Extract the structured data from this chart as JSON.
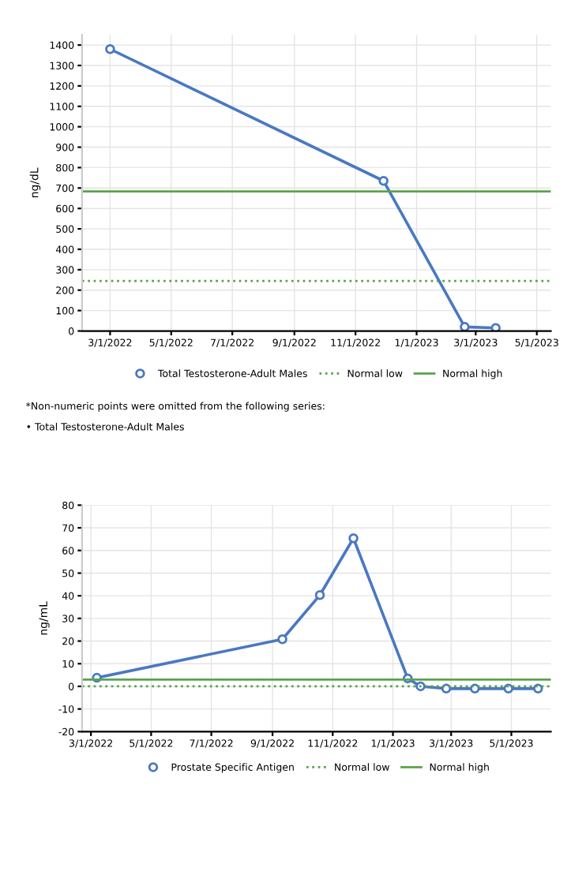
{
  "chart_data": [
    {
      "type": "line",
      "ylabel": "ng/dL",
      "marker": "circle",
      "line_style": "solid",
      "grid": true,
      "legend": "bottom",
      "series": [
        {
          "name": "Total Testosterone-Adult Males",
          "color": "#4a78c2",
          "x": [
            "2022-03-01",
            "2022-11-29",
            "2023-02-18",
            "2023-03-21"
          ],
          "values": [
            1380,
            735,
            20,
            15
          ]
        }
      ],
      "ref_lines": [
        {
          "axis": "y",
          "value": 245,
          "label": "Normal low",
          "color": "#5aa34a",
          "line_style": "dotted"
        },
        {
          "axis": "y",
          "value": 683,
          "label": "Normal high",
          "color": "#5aa34a",
          "line_style": "solid"
        }
      ],
      "xlim": [
        "2022-02-01",
        "2023-05-15"
      ],
      "ylim": [
        0,
        1450
      ],
      "xticks": [
        {
          "value": "2022-03-01",
          "label": "3/1/2022"
        },
        {
          "value": "2022-05-01",
          "label": "5/1/2022"
        },
        {
          "value": "2022-07-01",
          "label": "7/1/2022"
        },
        {
          "value": "2022-09-01",
          "label": "9/1/2022"
        },
        {
          "value": "2022-11-01",
          "label": "11/1/2022"
        },
        {
          "value": "2023-01-01",
          "label": "1/1/2023"
        },
        {
          "value": "2023-03-01",
          "label": "3/1/2023"
        },
        {
          "value": "2023-05-01",
          "label": "5/1/2023"
        }
      ],
      "yticks": [
        0,
        100,
        200,
        300,
        400,
        500,
        600,
        700,
        800,
        900,
        1000,
        1100,
        1200,
        1300,
        1400
      ],
      "annotations": [
        "*Non-numeric points were omitted from the following series:",
        "• Total Testosterone-Adult Males"
      ]
    },
    {
      "type": "line",
      "ylabel": "ng/mL",
      "marker": "circle",
      "line_style": "solid",
      "grid": true,
      "legend": "bottom",
      "series": [
        {
          "name": "Prostate Specific Antigen",
          "color": "#4a78c2",
          "x": [
            "2022-03-07",
            "2022-09-11",
            "2022-10-19",
            "2022-11-22",
            "2023-01-16",
            "2023-01-29",
            "2023-02-24",
            "2023-03-25",
            "2023-04-28",
            "2023-05-28"
          ],
          "values": [
            3.8,
            20.8,
            40.3,
            65.4,
            3.5,
            0,
            -1,
            -1,
            -1,
            -1
          ]
        }
      ],
      "ref_lines": [
        {
          "axis": "y",
          "value": 0,
          "label": "Normal low",
          "color": "#5aa34a",
          "line_style": "dotted"
        },
        {
          "axis": "y",
          "value": 3,
          "label": "Normal high",
          "color": "#5aa34a",
          "line_style": "solid"
        }
      ],
      "xlim": [
        "2022-02-20",
        "2023-06-10"
      ],
      "ylim": [
        -20,
        80
      ],
      "xticks": [
        {
          "value": "2022-03-01",
          "label": "3/1/2022"
        },
        {
          "value": "2022-05-01",
          "label": "5/1/2022"
        },
        {
          "value": "2022-07-01",
          "label": "7/1/2022"
        },
        {
          "value": "2022-09-01",
          "label": "9/1/2022"
        },
        {
          "value": "2022-11-01",
          "label": "11/1/2022"
        },
        {
          "value": "2023-01-01",
          "label": "1/1/2023"
        },
        {
          "value": "2023-03-01",
          "label": "3/1/2023"
        },
        {
          "value": "2023-05-01",
          "label": "5/1/2023"
        }
      ],
      "yticks": [
        -20,
        -10,
        0,
        10,
        20,
        30,
        40,
        50,
        60,
        70,
        80
      ]
    }
  ]
}
